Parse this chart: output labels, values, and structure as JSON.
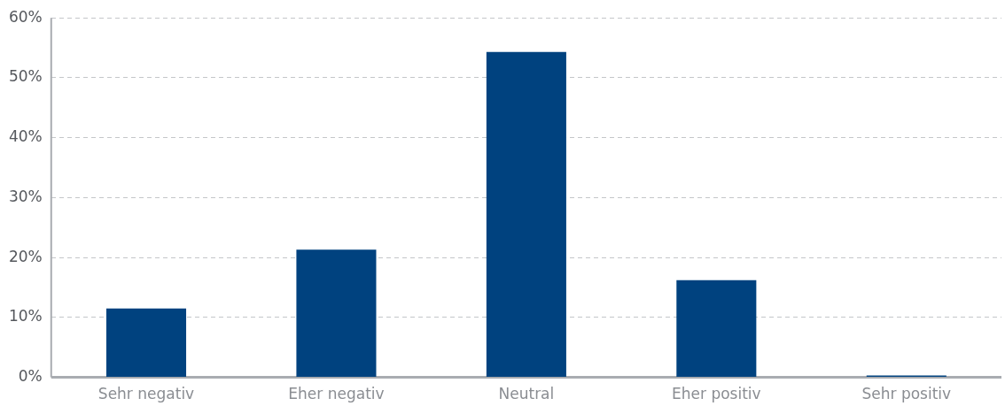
{
  "chart_data": {
    "type": "bar",
    "categories": [
      "Sehr negativ",
      "Eher negativ",
      "Neutral",
      "Eher positiv",
      "Sehr positiv"
    ],
    "values": [
      11.5,
      21.3,
      54.3,
      16.2,
      0.3
    ],
    "color": "#00427f",
    "ylim": [
      0,
      60
    ],
    "yticks": [
      {
        "value": 0,
        "label": "0%"
      },
      {
        "value": 10,
        "label": "10%"
      },
      {
        "value": 20,
        "label": "20%"
      },
      {
        "value": 30,
        "label": "30%"
      },
      {
        "value": 40,
        "label": "40%"
      },
      {
        "value": 50,
        "label": "50%"
      },
      {
        "value": 60,
        "label": "60%"
      }
    ],
    "grid": "y",
    "legend": false
  }
}
